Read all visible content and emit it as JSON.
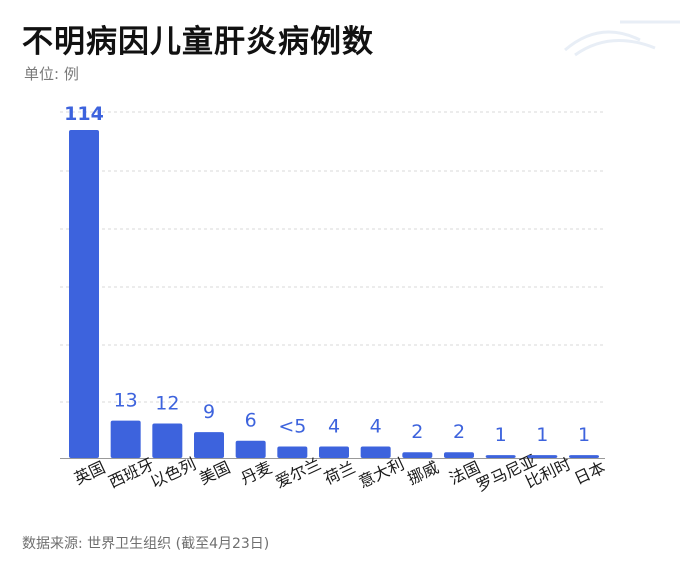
{
  "title": "不明病因儿童肝炎病例数",
  "unit": "单位: 例",
  "source": "数据来源: 世界卫生组织 (截至4月23日)",
  "colors": {
    "bar": "#3d63dd",
    "value_label": "#3d63dd",
    "grid": "#d9d9d9"
  },
  "chart_data": {
    "type": "bar",
    "title": "不明病因儿童肝炎病例数",
    "ylabel": "单位: 例",
    "xlabel": "",
    "ylim": [
      0,
      114
    ],
    "grid": true,
    "categories": [
      "英国",
      "西班牙",
      "以色列",
      "美国",
      "丹麦",
      "爱尔兰",
      "荷兰",
      "意大利",
      "挪威",
      "法国",
      "罗马尼亚",
      "比利时",
      "日本"
    ],
    "values": [
      114,
      13,
      12,
      9,
      6,
      4,
      4,
      4,
      2,
      2,
      1,
      1,
      1
    ],
    "value_labels": [
      "114",
      "13",
      "12",
      "9",
      "6",
      "<5",
      "4",
      "4",
      "2",
      "2",
      "1",
      "1",
      "1"
    ]
  }
}
